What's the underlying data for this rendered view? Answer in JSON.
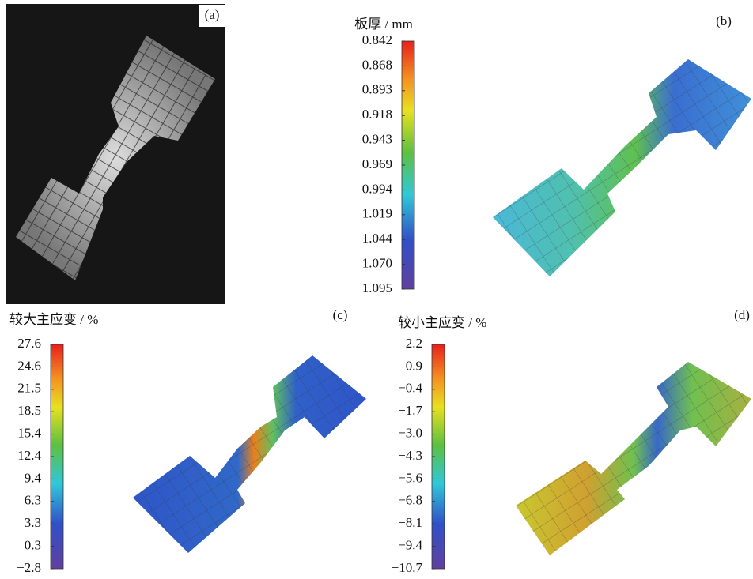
{
  "panels": [
    {
      "label": "(a)"
    },
    {
      "label": "(b)",
      "colorbar": {
        "title": "板厚 / mm",
        "ticks": [
          "0.842",
          "0.868",
          "0.893",
          "0.918",
          "0.943",
          "0.969",
          "0.994",
          "1.019",
          "1.044",
          "1.070",
          "1.095"
        ]
      }
    },
    {
      "label": "(c)",
      "colorbar": {
        "title": "较大主应变 / %",
        "ticks": [
          "27.6",
          "24.6",
          "21.5",
          "18.5",
          "15.4",
          "12.4",
          "9.4",
          "6.3",
          "3.3",
          "0.3",
          "−2.8"
        ]
      }
    },
    {
      "label": "(d)",
      "colorbar": {
        "title": "较小主应变 / %",
        "ticks": [
          "2.2",
          "0.9",
          "−0.4",
          "−1.7",
          "−3.0",
          "−4.3",
          "−5.6",
          "−6.8",
          "−8.1",
          "−9.4",
          "−10.7"
        ]
      }
    }
  ]
}
